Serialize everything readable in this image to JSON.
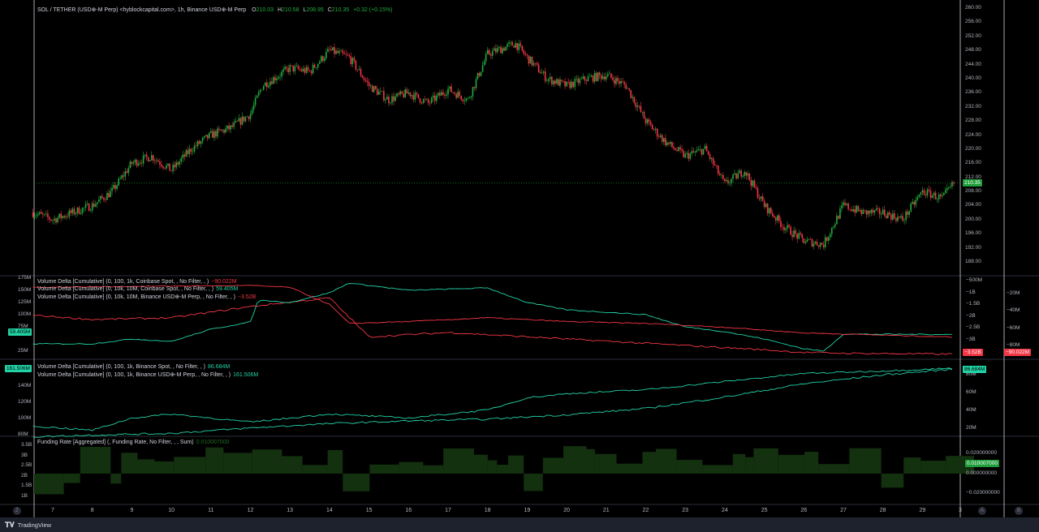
{
  "header": {
    "symbol": "SOL / TETHER (USD⊕-M Perp) <hyblockcapital.com>, 1h, Binance USD⊕-M Perp",
    "o_label": "O",
    "o": "210.03",
    "h_label": "H",
    "h": "210.58",
    "l_label": "L",
    "l": "208.95",
    "c_label": "C",
    "c": "210.35",
    "change": "+0.32 (+0.15%)"
  },
  "colors": {
    "up": "#089981",
    "down": "#f23645",
    "candle_up": "#22ab3c",
    "teal": "#22d3a6",
    "funding": "#13300f",
    "badge_green": "#1f9d3a"
  },
  "panes": {
    "price": {
      "axis": [
        "260.00",
        "256.00",
        "252.00",
        "248.00",
        "244.00",
        "240.00",
        "236.00",
        "232.00",
        "228.00",
        "224.00",
        "220.00",
        "216.00",
        "212.00",
        "208.00",
        "204.00",
        "200.00",
        "196.00",
        "192.00",
        "188.00"
      ],
      "last": "210.35"
    },
    "vd1": {
      "legends": [
        {
          "text": "Volume Delta [Cumulative] (0, 100, 1k, Coinbase Spot, , No Filter, , )",
          "value": "−90.022M",
          "color": "#f23645"
        },
        {
          "text": "Volume Delta [Cumulative] (0, 10k, 10M, Coinbase Spot, , No Filter, , )",
          "value": "59.405M",
          "color": "#22d3a6"
        },
        {
          "text": "Volume Delta [Cumulative] (0, 10k, 10M, Binance USD⊕-M Perp, , No Filter, , )",
          "value": "−3.52B",
          "color": "#f23645"
        }
      ],
      "left_axis": [
        "175M",
        "150M",
        "125M",
        "100M",
        "75M",
        "25M"
      ],
      "left_badge": "59.405M",
      "right_axis": [
        "−500M",
        "−1B",
        "−1.5B",
        "−2B",
        "−2.5B",
        "−3B"
      ],
      "right_badge": "−3.52B",
      "right2_axis": [
        "−20M",
        "−40M",
        "−60M",
        "−80M"
      ],
      "right2_badge": "−90.022M"
    },
    "vd2": {
      "legends": [
        {
          "text": "Volume Delta [Cumulative] (0, 100, 1k, Binance Spot, , No Filter, , )",
          "value": "86.684M",
          "color": "#22d3a6"
        },
        {
          "text": "Volume Delta [Cumulative] (0, 100, 1k, Binance USD⊕-M Perp, , No Filter, , )",
          "value": "161.506M",
          "color": "#22d3a6"
        }
      ],
      "left_axis": [
        "140M",
        "120M",
        "100M",
        "80M"
      ],
      "left_badge": "161.506M",
      "right_axis": [
        "80M",
        "60M",
        "40M",
        "20M"
      ],
      "right_badge": "86.684M"
    },
    "funding": {
      "legend": "Funding Rate [Aggregated] (, Funding Rate, No Filter, , , Sum)",
      "value": "0.010007000",
      "left_axis": [
        "3.5B",
        "3B",
        "2.5B",
        "2B",
        "1.5B",
        "1B"
      ],
      "right_axis": [
        "0.020000000",
        "0.000000000",
        "−0.020000000"
      ],
      "right_badge": "0.010007000"
    }
  },
  "time_axis": [
    "7",
    "8",
    "9",
    "10",
    "11",
    "12",
    "13",
    "14",
    "15",
    "16",
    "17",
    "18",
    "19",
    "20",
    "21",
    "22",
    "23",
    "24",
    "25",
    "26",
    "27",
    "28",
    "29",
    "3"
  ],
  "axis_buttons": {
    "left": "Z",
    "mid": "A",
    "right": "B"
  },
  "footer": {
    "brand": "TradingView"
  },
  "chart_data": {
    "type": "candlestick",
    "price_path": {
      "days": [
        6.5,
        7,
        8,
        8.5,
        9,
        9.5,
        10,
        10.5,
        11,
        11.5,
        12,
        12.3,
        13,
        13.5,
        14,
        14.5,
        15,
        15.5,
        16,
        16.5,
        17,
        17.5,
        18,
        18.7,
        19,
        19.5,
        20,
        20.5,
        21,
        21.5,
        22,
        22.5,
        23,
        23.5,
        24,
        24.5,
        25,
        25.5,
        26,
        26.5,
        27,
        27.5,
        28,
        28.5,
        29,
        29.5,
        29.8
      ],
      "close": [
        202,
        200,
        204,
        208,
        216,
        218,
        214,
        220,
        224,
        226,
        230,
        238,
        243,
        242,
        248,
        246,
        238,
        234,
        236,
        233,
        237,
        234,
        247,
        250,
        246,
        240,
        238,
        240,
        241,
        238,
        228,
        222,
        218,
        220,
        210,
        214,
        204,
        198,
        194,
        193,
        204,
        202,
        202,
        200,
        208,
        206,
        210.35
      ]
    },
    "ylim": [
      188,
      260
    ],
    "vd_coinbase_small": {
      "days": [
        6.5,
        8,
        10,
        12,
        13,
        14,
        15,
        17,
        19,
        21,
        23,
        25,
        26,
        27,
        29.8
      ],
      "values": [
        -45,
        -50,
        -48,
        -35,
        -30,
        -25,
        -70,
        -65,
        -70,
        -75,
        -80,
        -85,
        -88,
        -89,
        -90.022
      ]
    },
    "vd_coinbase_large": {
      "days": [
        6.5,
        8,
        9,
        10,
        11,
        12,
        12.2,
        13,
        14,
        14.5,
        16,
        18,
        19,
        20,
        22,
        23,
        24,
        25,
        26,
        26.5,
        27,
        29.8
      ],
      "values": [
        40,
        40,
        50,
        45,
        70,
        85,
        130,
        125,
        145,
        165,
        150,
        155,
        125,
        110,
        100,
        75,
        65,
        50,
        30,
        25,
        60,
        59.405
      ]
    },
    "vd_binance_perp_vd1": {
      "days": [
        6.5,
        9,
        12,
        13,
        14,
        14.5,
        16,
        18,
        20,
        22,
        24,
        26,
        29.8
      ],
      "values": [
        -0.9,
        -0.85,
        -0.8,
        -0.9,
        -1.8,
        -2.8,
        -2.7,
        -2.5,
        -2.7,
        -2.8,
        -3.0,
        -3.3,
        -3.52
      ]
    },
    "vd_binance_spot": {
      "days": [
        6.5,
        8,
        10,
        12,
        14,
        16,
        18,
        20,
        22,
        24,
        26,
        28,
        29.8
      ],
      "values": [
        10,
        12,
        14,
        20,
        25,
        28,
        30,
        35,
        42,
        55,
        70,
        80,
        86.684
      ]
    },
    "vd_binance_perp": {
      "days": [
        6.5,
        8,
        9,
        10,
        12,
        14,
        16,
        18,
        19,
        20,
        22,
        24,
        26,
        28,
        29.8
      ],
      "values": [
        90,
        85,
        100,
        105,
        95,
        105,
        100,
        110,
        125,
        130,
        135,
        145,
        155,
        158,
        161.506
      ]
    }
  }
}
